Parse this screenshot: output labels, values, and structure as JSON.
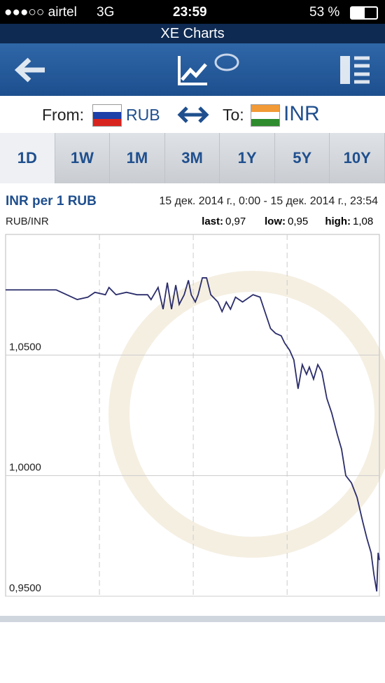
{
  "status_bar": {
    "carrier": "●●●○○ airtel",
    "network": "3G",
    "time": "23:59",
    "battery": "53 %"
  },
  "header": {
    "title": "XE Charts"
  },
  "currency": {
    "from_label": "From:",
    "from": "RUB",
    "to_label": "To:",
    "to": "INR"
  },
  "tabs": [
    "1D",
    "1W",
    "1M",
    "3M",
    "1Y",
    "5Y",
    "10Y"
  ],
  "summary": {
    "pair": "RUB/INR",
    "last_label": "last:",
    "last": "0,97",
    "low_label": "low:",
    "low": "0,95",
    "high_label": "high:",
    "high": "1,08"
  },
  "chart_data": {
    "type": "line",
    "title": "INR per 1 RUB",
    "subtitle": "15 дек. 2014 г., 0:00 - 15 дек. 2014 г., 23:54",
    "x": [
      0,
      3.24,
      4.58,
      5.26,
      5.71,
      6.38,
      6.61,
      7.06,
      7.73,
      8.4,
      9.08,
      9.3,
      9.75,
      10.07,
      10.34,
      10.61,
      10.88,
      11.1,
      11.42,
      11.69,
      11.87,
      12.13,
      12.31,
      12.58,
      12.85,
      13.12,
      13.57,
      13.84,
      14.11,
      14.38,
      14.7,
      15.15,
      15.82,
      16.27,
      16.63,
      16.94,
      17.26,
      17.62,
      17.84,
      18.16,
      18.43,
      18.7,
      18.97,
      19.24,
      19.42,
      19.69,
      19.96,
      20.22,
      20.54,
      20.85,
      21.21,
      21.48,
      21.75,
      22.11,
      22.47,
      22.83,
      23.1,
      23.37,
      23.55,
      23.73,
      23.82,
      23.9
    ],
    "series": [
      {
        "name": "RUB/INR",
        "color": "#2b2d6b",
        "values": [
          1.077,
          1.077,
          1.073,
          1.074,
          1.076,
          1.075,
          1.078,
          1.075,
          1.076,
          1.075,
          1.075,
          1.073,
          1.078,
          1.069,
          1.08,
          1.069,
          1.079,
          1.071,
          1.075,
          1.081,
          1.075,
          1.072,
          1.075,
          1.082,
          1.082,
          1.075,
          1.072,
          1.068,
          1.072,
          1.069,
          1.074,
          1.072,
          1.075,
          1.074,
          1.067,
          1.061,
          1.059,
          1.058,
          1.055,
          1.052,
          1.048,
          1.036,
          1.046,
          1.042,
          1.045,
          1.04,
          1.046,
          1.043,
          1.032,
          1.026,
          1.017,
          1.011,
          1.0,
          0.997,
          0.991,
          0.981,
          0.974,
          0.968,
          0.959,
          0.952,
          0.968,
          0.965
        ]
      }
    ],
    "xlim": [
      0,
      23.9
    ],
    "xticks": [
      6,
      12,
      18
    ],
    "xtick_labels": false,
    "ylim": [
      0.95,
      1.1
    ],
    "yticks": [
      {
        "value": 0.95,
        "label": "0,9500"
      },
      {
        "value": 1.0,
        "label": "1,0000"
      },
      {
        "value": 1.05,
        "label": "1,0500"
      }
    ],
    "grid": true
  }
}
